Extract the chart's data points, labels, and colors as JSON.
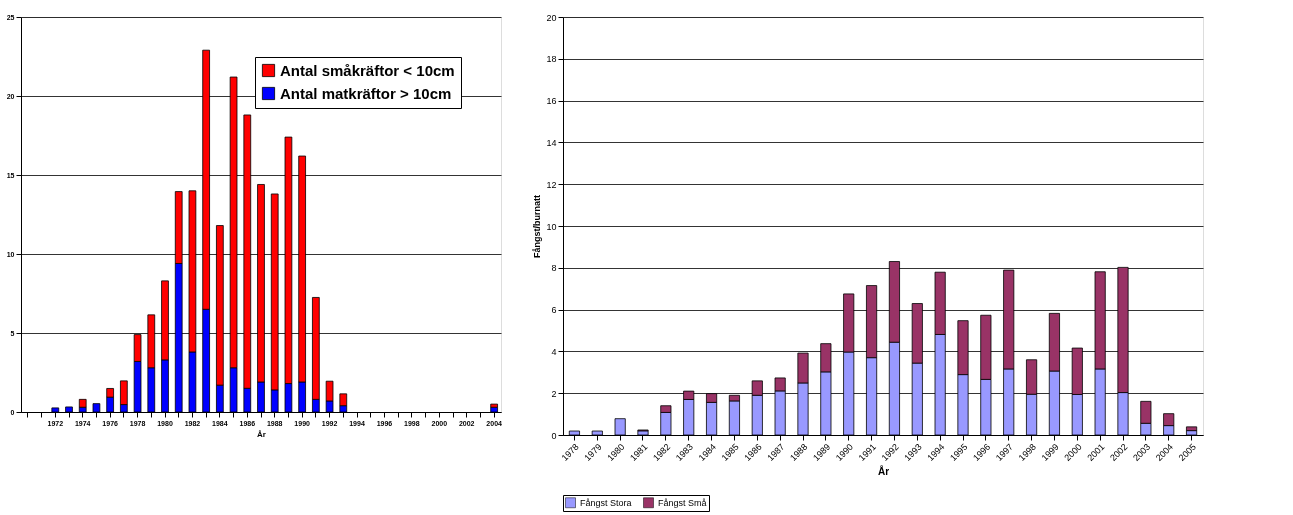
{
  "chart_data": [
    {
      "type": "bar",
      "stacked": true,
      "xlabel": "År",
      "legend": "top right",
      "grid": "y",
      "categories": [
        null,
        null,
        "1972",
        null,
        "1974",
        null,
        "1976",
        null,
        "1978",
        null,
        "1980",
        null,
        "1982",
        null,
        "1984",
        null,
        "1986",
        null,
        "1988",
        null,
        "1990",
        null,
        "1992",
        null,
        "1994",
        null,
        "1996",
        null,
        "1998",
        null,
        "2000",
        null,
        "2002",
        null,
        "2004"
      ],
      "ylim": [
        0,
        25
      ],
      "yticks": [
        0,
        5,
        10,
        15,
        20,
        25
      ],
      "series": [
        {
          "name": "Antal matkräftor > 10cm",
          "color": "#0000ff",
          "values": [
            null,
            null,
            0.26,
            0.32,
            0.3,
            0.53,
            0.94,
            0.47,
            3.2,
            2.8,
            3.3,
            9.4,
            3.8,
            6.5,
            1.7,
            2.8,
            1.5,
            1.9,
            1.4,
            1.8,
            1.9,
            0.8,
            0.7,
            0.4,
            null,
            null,
            null,
            null,
            null,
            null,
            null,
            null,
            null,
            null,
            0.3
          ]
        },
        {
          "name": "Antal småkräftor < 10cm",
          "color": "#ff0000",
          "values": [
            null,
            null,
            null,
            null,
            0.5,
            null,
            0.55,
            1.5,
            1.7,
            3.35,
            5.0,
            4.55,
            10.2,
            16.4,
            10.1,
            18.4,
            17.3,
            12.5,
            12.4,
            15.6,
            14.3,
            6.45,
            1.25,
            0.75,
            null,
            null,
            null,
            null,
            null,
            null,
            null,
            null,
            null,
            null,
            0.2
          ]
        }
      ]
    },
    {
      "type": "bar",
      "stacked": true,
      "xlabel": "År",
      "ylabel": "Fångst/burnatt",
      "legend": "bottom",
      "grid": "y",
      "categories": [
        "1978",
        "1979",
        "1980",
        "1981",
        "1982",
        "1983",
        "1984",
        "1985",
        "1986",
        "1987",
        "1988",
        "1989",
        "1990",
        "1991",
        "1992",
        "1993",
        "1994",
        "1995",
        "1996",
        "1997",
        "1998",
        "1999",
        "2000",
        "2001",
        "2002",
        "2003",
        "2004",
        "2005"
      ],
      "ylim": [
        0,
        20
      ],
      "yticks": [
        0,
        2,
        4,
        6,
        8,
        10,
        12,
        14,
        16,
        18,
        20
      ],
      "series": [
        {
          "name": "Fångst Stora",
          "color": "#9999ff",
          "values": [
            0.19,
            0.19,
            0.78,
            0.2,
            1.08,
            1.7,
            1.56,
            1.63,
            1.9,
            2.11,
            2.49,
            3.02,
            3.97,
            3.7,
            4.44,
            3.44,
            4.81,
            2.89,
            2.66,
            3.16,
            1.95,
            3.06,
            1.94,
            3.16,
            2.03,
            0.56,
            0.45,
            0.21
          ]
        },
        {
          "name": "Fångst Små",
          "color": "#993366",
          "values": [
            null,
            null,
            null,
            0.04,
            0.32,
            0.4,
            0.42,
            0.27,
            0.69,
            0.62,
            1.43,
            1.35,
            2.78,
            3.45,
            3.86,
            2.85,
            2.98,
            2.58,
            3.07,
            4.73,
            1.65,
            2.76,
            2.22,
            4.65,
            5.99,
            1.05,
            0.57,
            0.18
          ]
        }
      ]
    }
  ]
}
